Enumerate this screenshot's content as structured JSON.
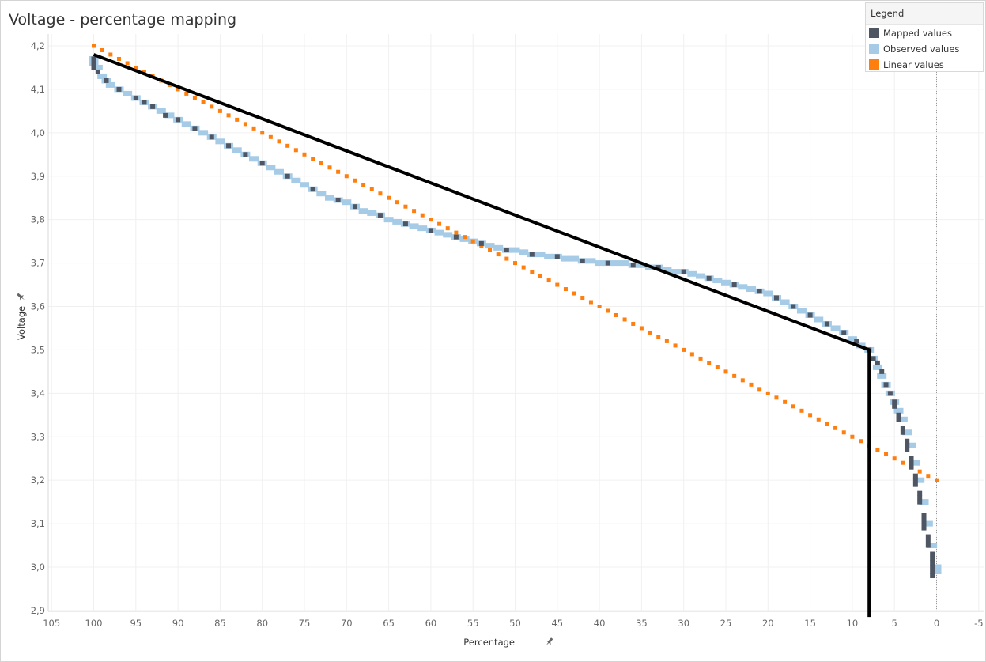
{
  "chart_data": {
    "type": "scatter",
    "title": "Voltage - percentage mapping",
    "xlabel": "Percentage",
    "ylabel": "Voltage",
    "xlim": [
      106.5,
      -5
    ],
    "ylim": [
      2.885,
      4.2
    ],
    "x_ticks": [
      "105",
      "100",
      "95",
      "90",
      "85",
      "80",
      "75",
      "70",
      "65",
      "60",
      "55",
      "50",
      "45",
      "40",
      "35",
      "30",
      "25",
      "20",
      "15",
      "10",
      "5",
      "0",
      "-5"
    ],
    "y_ticks": [
      "4,2",
      "4,1",
      "4,0",
      "3,9",
      "3,8",
      "3,7",
      "3,6",
      "3,5",
      "3,4",
      "3,3",
      "3,2",
      "3,1",
      "3,0",
      "2,9"
    ],
    "grid": true,
    "legend": {
      "title": "Legend",
      "position": "top-right",
      "items": [
        {
          "label": "Mapped values",
          "color": "#4e5664"
        },
        {
          "label": "Observed values",
          "color": "#a5cbe6"
        },
        {
          "label": "Linear values",
          "color": "#ff7f0e"
        }
      ]
    },
    "series": [
      {
        "name": "Observed values",
        "color": "#a5cbe6",
        "points": [
          [
            100,
            4.17
          ],
          [
            100,
            4.16
          ],
          [
            99.5,
            4.15
          ],
          [
            99,
            4.13
          ],
          [
            98.5,
            4.12
          ],
          [
            98,
            4.11
          ],
          [
            97,
            4.1
          ],
          [
            96,
            4.09
          ],
          [
            95,
            4.08
          ],
          [
            94,
            4.07
          ],
          [
            93,
            4.06
          ],
          [
            92,
            4.05
          ],
          [
            91,
            4.04
          ],
          [
            90,
            4.03
          ],
          [
            89,
            4.02
          ],
          [
            88,
            4.01
          ],
          [
            87,
            4.0
          ],
          [
            86,
            3.99
          ],
          [
            85,
            3.98
          ],
          [
            84,
            3.97
          ],
          [
            83,
            3.96
          ],
          [
            82,
            3.95
          ],
          [
            81,
            3.94
          ],
          [
            80,
            3.93
          ],
          [
            79,
            3.92
          ],
          [
            78,
            3.91
          ],
          [
            77,
            3.9
          ],
          [
            76,
            3.89
          ],
          [
            75,
            3.88
          ],
          [
            74,
            3.87
          ],
          [
            73,
            3.86
          ],
          [
            72,
            3.85
          ],
          [
            71,
            3.845
          ],
          [
            70,
            3.84
          ],
          [
            69,
            3.83
          ],
          [
            68,
            3.82
          ],
          [
            67,
            3.815
          ],
          [
            66,
            3.81
          ],
          [
            65,
            3.8
          ],
          [
            64,
            3.795
          ],
          [
            63,
            3.79
          ],
          [
            62,
            3.785
          ],
          [
            61,
            3.78
          ],
          [
            60,
            3.775
          ],
          [
            59,
            3.77
          ],
          [
            58,
            3.765
          ],
          [
            57,
            3.76
          ],
          [
            56,
            3.755
          ],
          [
            55,
            3.75
          ],
          [
            54,
            3.745
          ],
          [
            53,
            3.74
          ],
          [
            52,
            3.735
          ],
          [
            51,
            3.73
          ],
          [
            50,
            3.73
          ],
          [
            49,
            3.725
          ],
          [
            48,
            3.72
          ],
          [
            47,
            3.72
          ],
          [
            46,
            3.715
          ],
          [
            45,
            3.715
          ],
          [
            44,
            3.71
          ],
          [
            43,
            3.71
          ],
          [
            42,
            3.705
          ],
          [
            41,
            3.705
          ],
          [
            40,
            3.7
          ],
          [
            39,
            3.7
          ],
          [
            38,
            3.7
          ],
          [
            37,
            3.7
          ],
          [
            36,
            3.695
          ],
          [
            35,
            3.695
          ],
          [
            34,
            3.69
          ],
          [
            33,
            3.69
          ],
          [
            32,
            3.685
          ],
          [
            31,
            3.68
          ],
          [
            30,
            3.68
          ],
          [
            29,
            3.675
          ],
          [
            28,
            3.67
          ],
          [
            27,
            3.665
          ],
          [
            26,
            3.66
          ],
          [
            25,
            3.655
          ],
          [
            24,
            3.65
          ],
          [
            23,
            3.645
          ],
          [
            22,
            3.64
          ],
          [
            21,
            3.635
          ],
          [
            20,
            3.63
          ],
          [
            19,
            3.62
          ],
          [
            18,
            3.61
          ],
          [
            17,
            3.6
          ],
          [
            16,
            3.59
          ],
          [
            15,
            3.58
          ],
          [
            14,
            3.57
          ],
          [
            13,
            3.56
          ],
          [
            12,
            3.55
          ],
          [
            11,
            3.54
          ],
          [
            10,
            3.525
          ],
          [
            9,
            3.51
          ],
          [
            8,
            3.5
          ],
          [
            7.5,
            3.48
          ],
          [
            7,
            3.46
          ],
          [
            6.5,
            3.44
          ],
          [
            6,
            3.42
          ],
          [
            5.5,
            3.4
          ],
          [
            5,
            3.38
          ],
          [
            4.5,
            3.36
          ],
          [
            4,
            3.34
          ],
          [
            3.5,
            3.31
          ],
          [
            3,
            3.28
          ],
          [
            2.5,
            3.24
          ],
          [
            2,
            3.2
          ],
          [
            1.5,
            3.15
          ],
          [
            1,
            3.1
          ],
          [
            0.5,
            3.05
          ],
          [
            0,
            3.0
          ],
          [
            0,
            2.99
          ]
        ]
      },
      {
        "name": "Mapped values",
        "color": "#4e5664",
        "points": [
          [
            100,
            4.17
          ],
          [
            100,
            4.16
          ],
          [
            100,
            4.15
          ],
          [
            99.5,
            4.14
          ],
          [
            98.5,
            4.12
          ],
          [
            97,
            4.1
          ],
          [
            95,
            4.08
          ],
          [
            94,
            4.07
          ],
          [
            93,
            4.06
          ],
          [
            91.5,
            4.04
          ],
          [
            90,
            4.03
          ],
          [
            88,
            4.01
          ],
          [
            86,
            3.99
          ],
          [
            84,
            3.97
          ],
          [
            82,
            3.95
          ],
          [
            80,
            3.93
          ],
          [
            77,
            3.9
          ],
          [
            74,
            3.87
          ],
          [
            71,
            3.845
          ],
          [
            69,
            3.83
          ],
          [
            66,
            3.81
          ],
          [
            63,
            3.79
          ],
          [
            60,
            3.775
          ],
          [
            57,
            3.76
          ],
          [
            54,
            3.745
          ],
          [
            51,
            3.73
          ],
          [
            48,
            3.72
          ],
          [
            45,
            3.715
          ],
          [
            42,
            3.705
          ],
          [
            39,
            3.7
          ],
          [
            36,
            3.695
          ],
          [
            33,
            3.69
          ],
          [
            30,
            3.68
          ],
          [
            27,
            3.665
          ],
          [
            24,
            3.65
          ],
          [
            21,
            3.635
          ],
          [
            19,
            3.62
          ],
          [
            17,
            3.6
          ],
          [
            15,
            3.58
          ],
          [
            13,
            3.56
          ],
          [
            11,
            3.54
          ],
          [
            9.5,
            3.52
          ],
          [
            8,
            3.5
          ],
          [
            7.5,
            3.48
          ],
          [
            7,
            3.47
          ],
          [
            6.5,
            3.45
          ],
          [
            6,
            3.42
          ],
          [
            5.5,
            3.4
          ],
          [
            5,
            3.38
          ],
          [
            5,
            3.37
          ],
          [
            4.5,
            3.35
          ],
          [
            4.5,
            3.34
          ],
          [
            4,
            3.32
          ],
          [
            4,
            3.31
          ],
          [
            3.5,
            3.29
          ],
          [
            3.5,
            3.28
          ],
          [
            3.5,
            3.27
          ],
          [
            3,
            3.25
          ],
          [
            3,
            3.24
          ],
          [
            3,
            3.23
          ],
          [
            2.5,
            3.21
          ],
          [
            2.5,
            3.2
          ],
          [
            2.5,
            3.19
          ],
          [
            2,
            3.17
          ],
          [
            2,
            3.16
          ],
          [
            2,
            3.15
          ],
          [
            1.5,
            3.12
          ],
          [
            1.5,
            3.11
          ],
          [
            1.5,
            3.1
          ],
          [
            1.5,
            3.09
          ],
          [
            1,
            3.07
          ],
          [
            1,
            3.06
          ],
          [
            1,
            3.05
          ],
          [
            0.5,
            3.03
          ],
          [
            0.5,
            3.02
          ],
          [
            0.5,
            3.01
          ],
          [
            0.5,
            3.0
          ],
          [
            0.5,
            2.99
          ],
          [
            0.5,
            2.98
          ]
        ]
      },
      {
        "name": "Linear values",
        "color": "#ff7f0e",
        "x_start": 100,
        "x_end": 0,
        "x_step": 1,
        "y_start": 4.2,
        "y_end": 3.2
      }
    ],
    "annotation_polyline": {
      "color": "#000000",
      "points": [
        [
          100,
          4.18
        ],
        [
          8,
          3.5
        ],
        [
          8,
          2.885
        ]
      ]
    }
  }
}
